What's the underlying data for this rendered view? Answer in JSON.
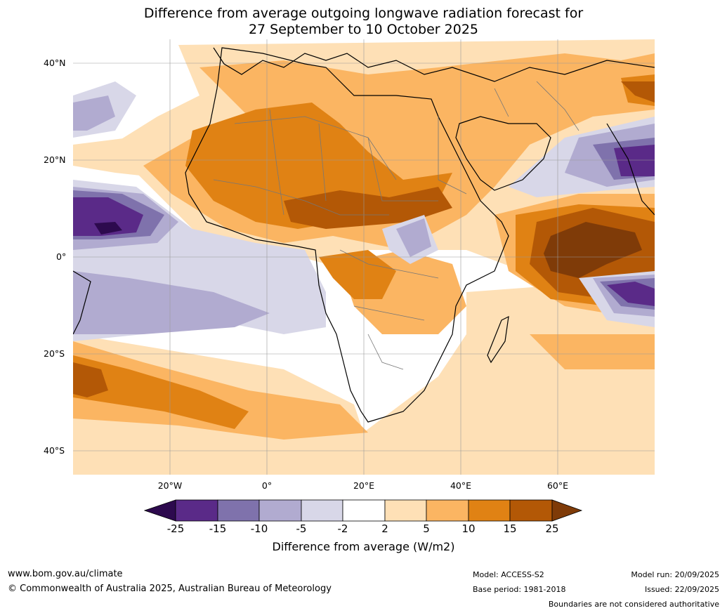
{
  "title": {
    "line1": "Difference from average outgoing longwave radiation forecast for",
    "line2": "27 September to 10 October 2025"
  },
  "axes": {
    "lat_labels": [
      "40°N",
      "20°N",
      "0°",
      "20°S",
      "40°S"
    ],
    "lon_labels": [
      "20°W",
      "0°",
      "20°E",
      "40°E",
      "60°E"
    ]
  },
  "colorbar": {
    "ticks": [
      "-25",
      "-15",
      "-10",
      "-5",
      "-2",
      "2",
      "5",
      "10",
      "15",
      "25"
    ],
    "colors": {
      "lt_m25": "#2d0a4e",
      "m25_m15": "#5a2a88",
      "m15_m10": "#7f72ac",
      "m10_m5": "#b1abd0",
      "m5_m2": "#d8d7e8",
      "m2_2": "#ffffff",
      "p2_5": "#fee0b6",
      "p5_10": "#fbb562",
      "p10_15": "#e08214",
      "p15_25": "#b35806",
      "gt_25": "#7f3b08"
    },
    "title": "Difference from average (W/m2)"
  },
  "footer": {
    "url": "www.bom.gov.au/climate",
    "copyright": "© Commonwealth of Australia 2025, Australian Bureau of Meteorology",
    "model": "Model: ACCESS-S2",
    "base_period": "Base period: 1981-2018",
    "model_run": "Model run: 20/09/2025",
    "issued": "Issued: 22/09/2025",
    "disclaimer": "Boundaries are not considered authoritative"
  }
}
